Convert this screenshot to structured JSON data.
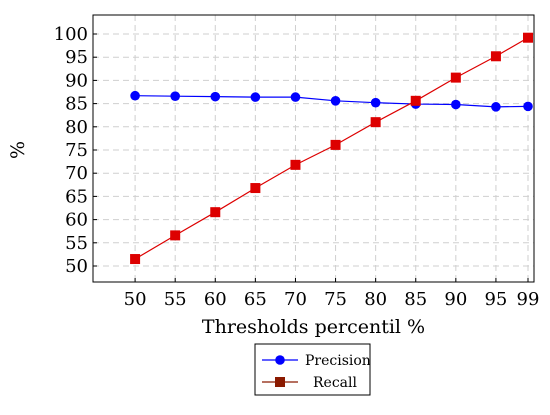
{
  "chart_data": {
    "type": "line",
    "title": "",
    "xlabel": "Thresholds percentil %",
    "ylabel": "%",
    "categories": [
      "50",
      "55",
      "60",
      "65",
      "70",
      "75",
      "80",
      "85",
      "90",
      "95",
      "99"
    ],
    "yticks": [
      50,
      55,
      60,
      65,
      70,
      75,
      80,
      85,
      90,
      95,
      100
    ],
    "ylim": [
      47,
      103
    ],
    "grid": true,
    "legend_position": "bottom-center",
    "series": [
      {
        "name": "Precision",
        "color": "#0000ff",
        "marker": "circle",
        "values": [
          86.7,
          86.6,
          86.5,
          86.4,
          86.4,
          85.6,
          85.2,
          84.9,
          84.8,
          84.3,
          84.4
        ]
      },
      {
        "name": "Recall",
        "color": "#dd0000",
        "legend_color": "#8b1a00",
        "marker": "square",
        "values": [
          51.5,
          56.6,
          61.6,
          66.8,
          71.8,
          76.1,
          81.0,
          85.6,
          90.6,
          95.2,
          99.2
        ]
      }
    ]
  }
}
